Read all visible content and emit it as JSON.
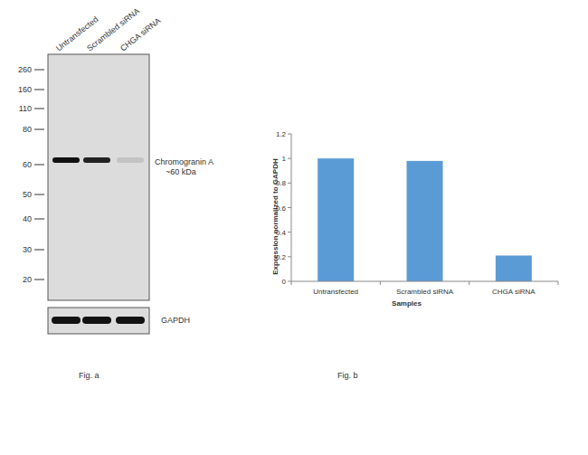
{
  "chart_data": {
    "type": "bar",
    "title": "Fig. b",
    "x_label": "Samples",
    "y_label": "Expression  normalized to GAPDH",
    "categories": [
      "Untransfected",
      "Scrambled siRNA",
      "CHGA siRNA"
    ],
    "values": [
      1,
      0.98,
      0.21
    ],
    "color": "#5b9bd5",
    "ylim": [
      0,
      1.2
    ],
    "yticks": [
      0,
      0.2,
      0.4,
      0.6,
      0.8,
      1,
      1.2
    ],
    "grid": false
  },
  "blot": {
    "title": "Fig. a",
    "lanes": [
      "Untransfected",
      "Scrambled siRNA",
      "CHGA siRNA"
    ],
    "markers": [
      260,
      160,
      110,
      80,
      60,
      50,
      40,
      30,
      20
    ],
    "target": {
      "label": "Chromogranin A",
      "size_label": "~60 kDa",
      "size": 60,
      "intensity": [
        1,
        0.92,
        0.12
      ]
    },
    "loading_control": {
      "label": "GAPDH",
      "intensity": [
        1,
        1,
        1
      ]
    }
  }
}
